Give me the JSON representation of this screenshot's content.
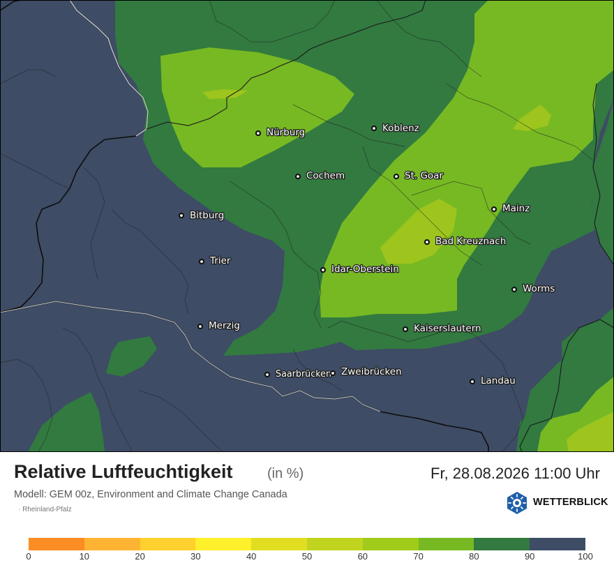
{
  "title": "Relative Luftfeuchtigkeit",
  "unit": "(in %)",
  "datetime": "Fr, 28.08.2026 11:00 Uhr",
  "model": "Modell: GEM 00z, Environment and Climate Change Canada",
  "region": "Rheinland-Pfalz",
  "brand": "WETTERBLICK",
  "colors": {
    "dark": "#3e4c65",
    "green80": "#327a40",
    "green70": "#77b923",
    "green60": "#9dc51d",
    "border": "#111111"
  },
  "legend": {
    "colors": [
      "#fc8c24",
      "#feb432",
      "#ffd02e",
      "#fff02c",
      "#e1de22",
      "#c0d41f",
      "#a1cb1b",
      "#77b923",
      "#327a40",
      "#3e4c65"
    ],
    "ticks": [
      "0",
      "10",
      "20",
      "30",
      "40",
      "50",
      "60",
      "70",
      "80",
      "90",
      "100"
    ]
  },
  "cities": [
    {
      "name": "Nürburg"
    },
    {
      "name": "Koblenz"
    },
    {
      "name": "Cochem"
    },
    {
      "name": "St. Goar"
    },
    {
      "name": "Bitburg"
    },
    {
      "name": "Mainz"
    },
    {
      "name": "Bad Kreuznach"
    },
    {
      "name": "Trier"
    },
    {
      "name": "Idar-Oberstein"
    },
    {
      "name": "Worms"
    },
    {
      "name": "Merzig"
    },
    {
      "name": "Kaiserslautern"
    },
    {
      "name": "Saarbrücken"
    },
    {
      "name": "Zweibrücken"
    },
    {
      "name": "Landau"
    }
  ]
}
